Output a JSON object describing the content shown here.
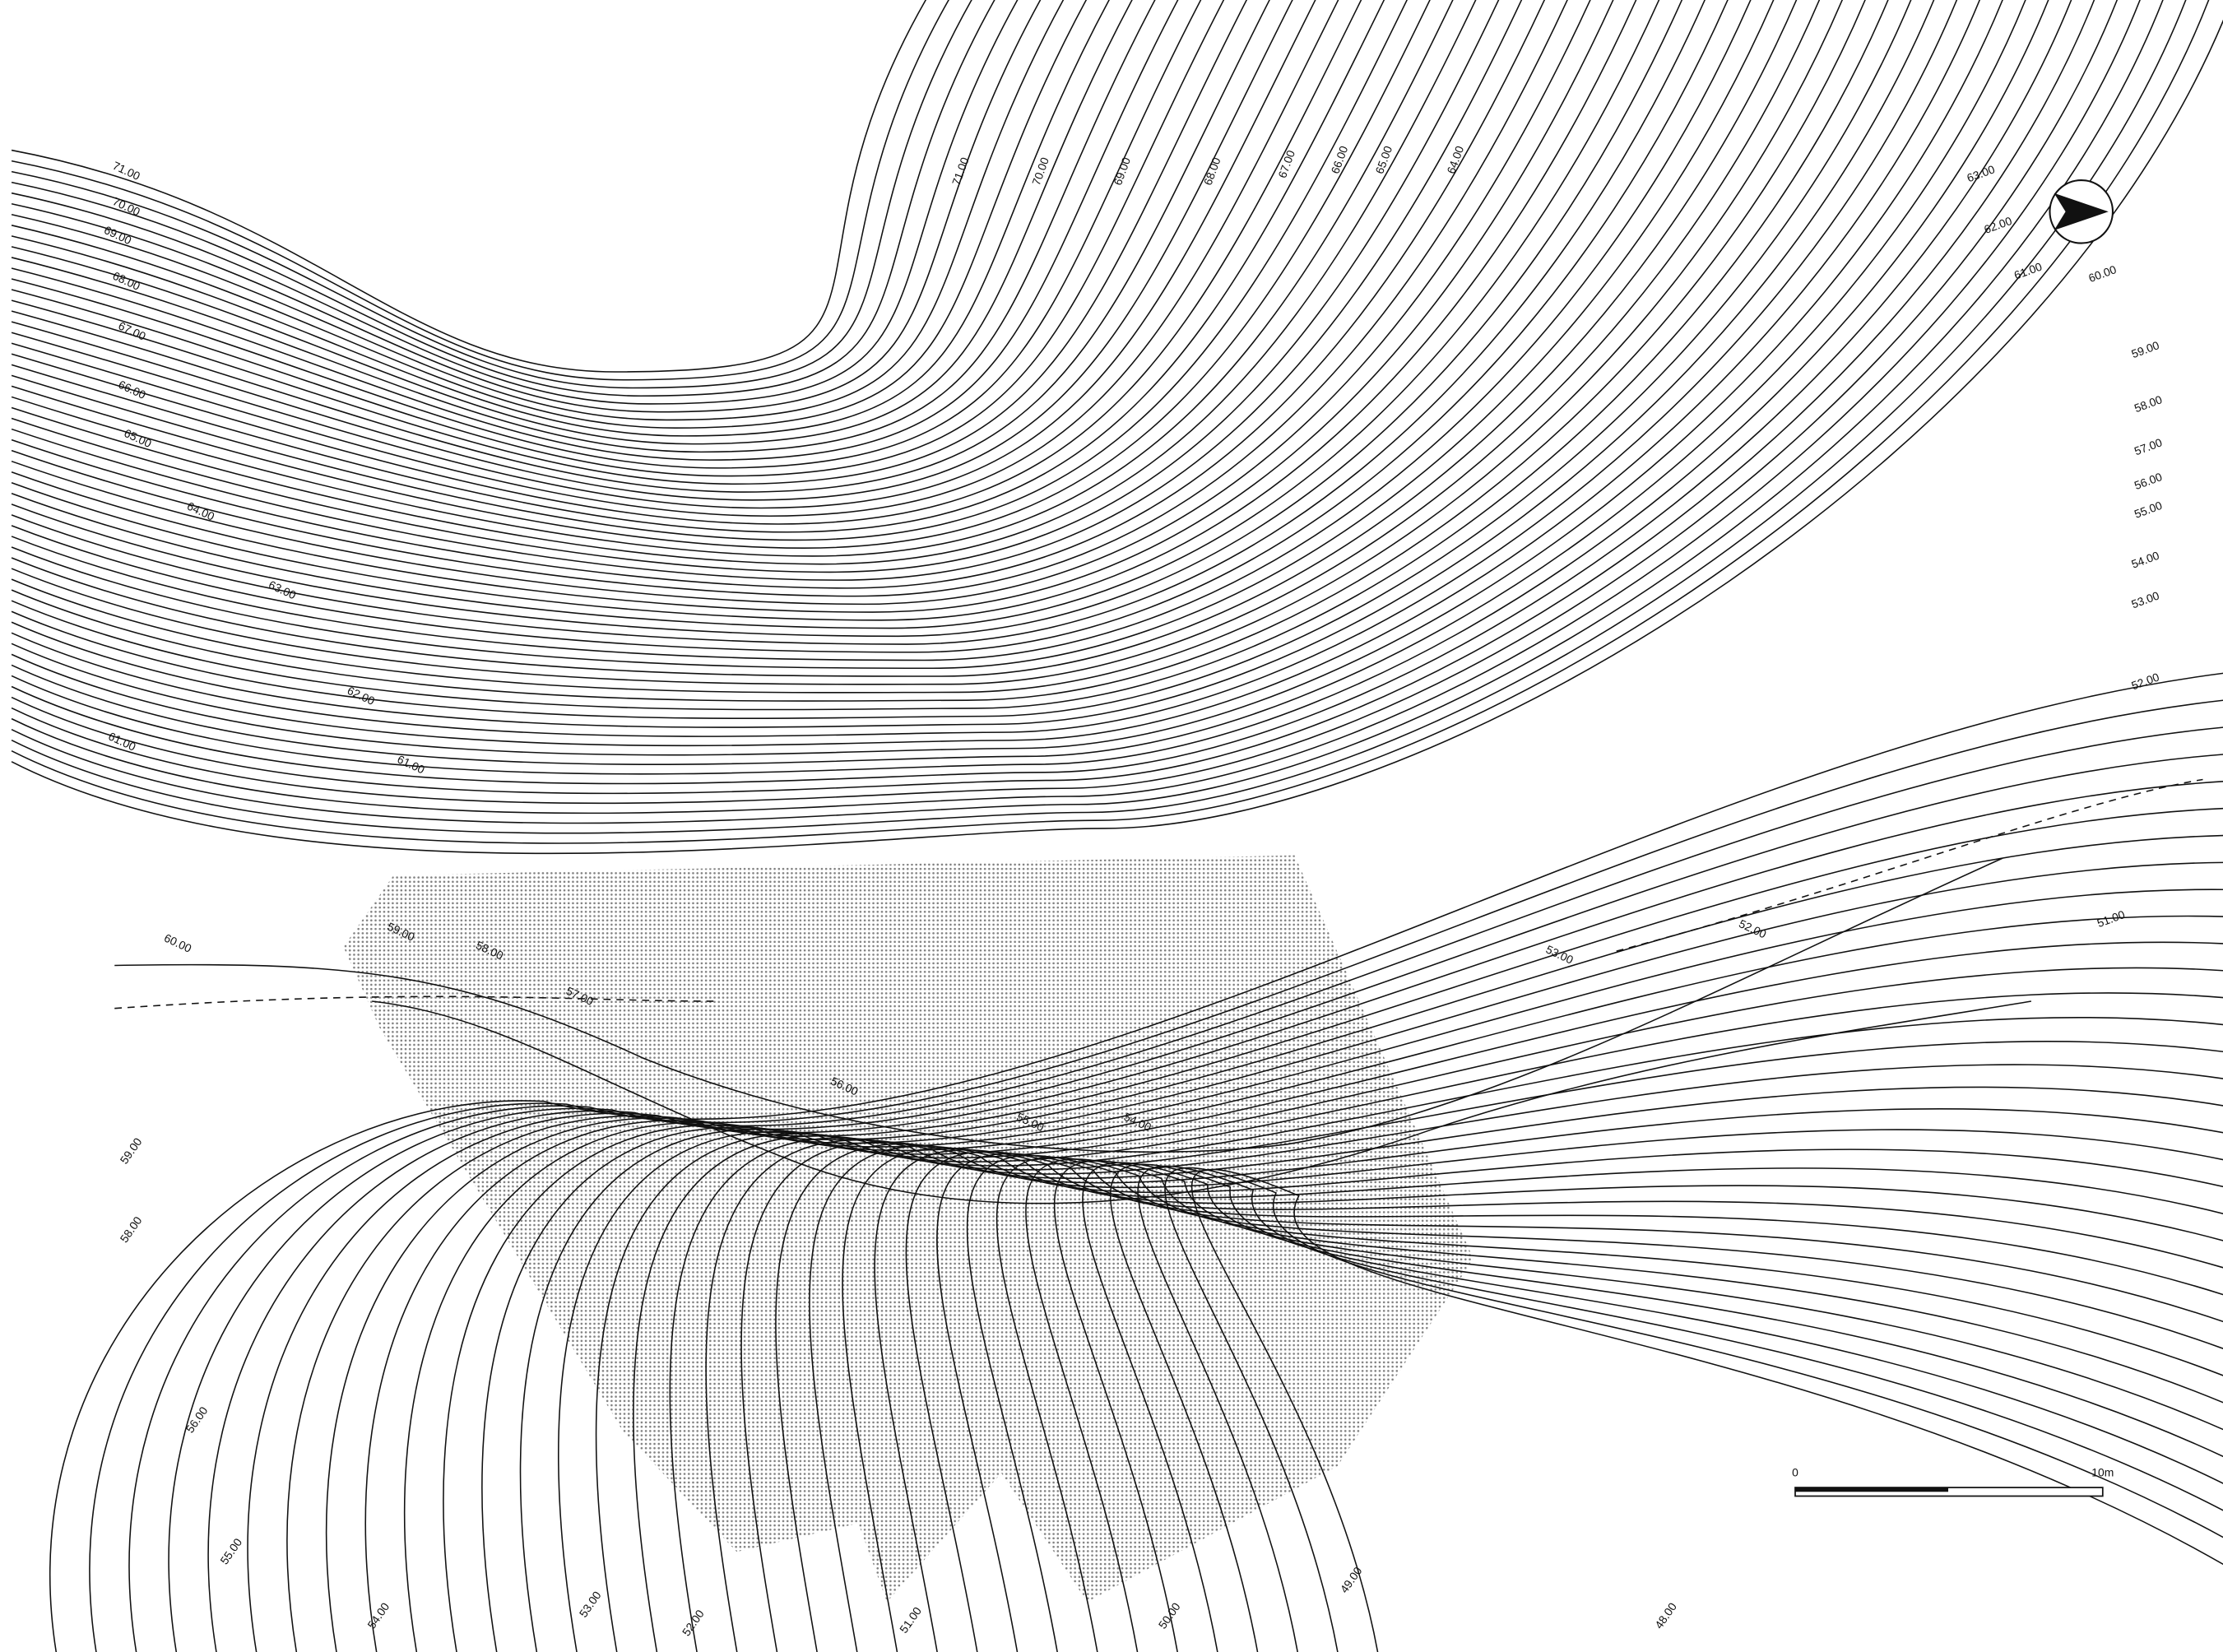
{
  "labels": [
    {
      "text": "71.00"
    },
    {
      "text": "70.00"
    },
    {
      "text": "69.00"
    },
    {
      "text": "68.00"
    },
    {
      "text": "67.00"
    },
    {
      "text": "66.00"
    },
    {
      "text": "65.00"
    },
    {
      "text": "64.00"
    },
    {
      "text": "63.00"
    },
    {
      "text": "62.00"
    },
    {
      "text": "61.00"
    },
    {
      "text": "60.00"
    },
    {
      "text": "59.00"
    },
    {
      "text": "58.00"
    },
    {
      "text": "57.00"
    },
    {
      "text": "56.00"
    },
    {
      "text": "55.00"
    },
    {
      "text": "54.00"
    },
    {
      "text": "53.00"
    },
    {
      "text": "52.00"
    },
    {
      "text": "51.00"
    },
    {
      "text": "71.00"
    },
    {
      "text": "70.00"
    },
    {
      "text": "69.00"
    },
    {
      "text": "68.00"
    },
    {
      "text": "67.00"
    },
    {
      "text": "66.00"
    },
    {
      "text": "65.00"
    },
    {
      "text": "64.00"
    },
    {
      "text": "63.00"
    },
    {
      "text": "62.00"
    },
    {
      "text": "61.00"
    },
    {
      "text": "61.00"
    },
    {
      "text": "60.00"
    },
    {
      "text": "59.00"
    },
    {
      "text": "58.00"
    },
    {
      "text": "57.00"
    },
    {
      "text": "56.00"
    },
    {
      "text": "55.00"
    },
    {
      "text": "54.00"
    },
    {
      "text": "53.00"
    },
    {
      "text": "52.00"
    },
    {
      "text": "59.00"
    },
    {
      "text": "58.00"
    },
    {
      "text": "56.00"
    },
    {
      "text": "55.00"
    },
    {
      "text": "54.00"
    },
    {
      "text": "53.00"
    },
    {
      "text": "52.00"
    },
    {
      "text": "51.00"
    },
    {
      "text": "50.00"
    },
    {
      "text": "49.00"
    },
    {
      "text": "48.00"
    }
  ],
  "scale_bar": {
    "start": "0",
    "end": "10m"
  }
}
